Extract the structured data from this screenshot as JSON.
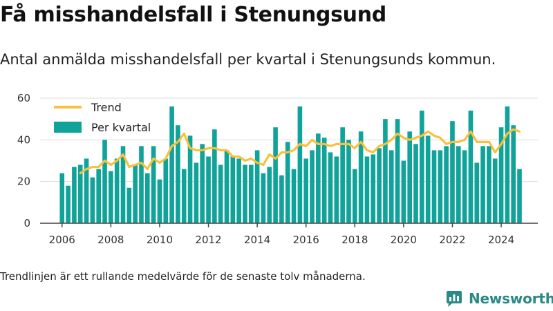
{
  "header": {
    "title": "Få misshandelsfall i Stenungsund",
    "subtitle": "Antal anmälda misshandelsfall per kvartal i Stenungsunds kommun."
  },
  "footnote": "Trendlinjen är ett rullande medelvärde för de senaste tolv månaderna.",
  "brand": {
    "name": "Newsworthy",
    "icon": "bar-chart-logo-icon"
  },
  "colors": {
    "bar": "#0fa39a",
    "trend": "#f9c03b",
    "axis": "#444444",
    "grid": "#dddddd"
  },
  "chart_data": {
    "type": "bar",
    "x_start": 2006.0,
    "x_step": 0.25,
    "values": [
      24,
      18,
      27,
      28,
      31,
      22,
      26,
      40,
      25,
      31,
      37,
      17,
      28,
      37,
      24,
      37,
      21,
      31,
      56,
      47,
      26,
      42,
      29,
      38,
      32,
      45,
      28,
      35,
      32,
      31,
      28,
      28,
      35,
      24,
      27,
      46,
      23,
      39,
      26,
      56,
      31,
      35,
      43,
      41,
      34,
      32,
      46,
      40,
      26,
      44,
      32,
      33,
      36,
      50,
      35,
      50,
      30,
      44,
      38,
      54,
      42,
      35,
      35,
      37,
      49,
      37,
      35,
      54,
      29,
      37,
      37,
      31,
      46,
      56,
      47,
      26
    ],
    "series": [
      {
        "name": "Per kvartal"
      },
      {
        "name": "Trend",
        "x": [
          2006.75,
          2007,
          2007.25,
          2007.5,
          2007.75,
          2008,
          2008.25,
          2008.5,
          2008.75,
          2009,
          2009.25,
          2009.5,
          2009.75,
          2010,
          2010.25,
          2010.5,
          2010.75,
          2011,
          2011.25,
          2011.5,
          2011.75,
          2012,
          2012.25,
          2012.5,
          2012.75,
          2013,
          2013.25,
          2013.5,
          2013.75,
          2014,
          2014.25,
          2014.5,
          2014.75,
          2015,
          2015.25,
          2015.5,
          2015.75,
          2016,
          2016.25,
          2016.5,
          2016.75,
          2017,
          2017.25,
          2017.5,
          2017.75,
          2018,
          2018.25,
          2018.5,
          2018.75,
          2019,
          2019.25,
          2019.5,
          2019.75,
          2020,
          2020.25,
          2020.5,
          2020.75,
          2021,
          2021.25,
          2021.5,
          2021.75,
          2022,
          2022.25,
          2022.5,
          2022.75,
          2023,
          2023.25,
          2023.5,
          2023.75,
          2024,
          2024.25,
          2024.5,
          2024.75
        ],
        "values": [
          24,
          26,
          27,
          27,
          30,
          28,
          30,
          33,
          27,
          28,
          29,
          26,
          31,
          29,
          31,
          37,
          39,
          43,
          36,
          35,
          35,
          36,
          36,
          35,
          35,
          32,
          32,
          30,
          31,
          29,
          28,
          33,
          31,
          34,
          34,
          35,
          38,
          37,
          40,
          38,
          38,
          37,
          38,
          38,
          38,
          36,
          39,
          35,
          34,
          37,
          38,
          40,
          43,
          41,
          40,
          41,
          42,
          44,
          42,
          41,
          38,
          39,
          39,
          40,
          44,
          39,
          39,
          39,
          34,
          38,
          43,
          45,
          44
        ]
      }
    ],
    "legend": [
      "Trend",
      "Per kvartal"
    ],
    "legend_position": "top-left",
    "x_ticks": [
      "2006",
      "2008",
      "2010",
      "2012",
      "2014",
      "2016",
      "2018",
      "2020",
      "2022",
      "2024"
    ],
    "y_ticks": [
      "0",
      "20",
      "40",
      "60"
    ],
    "xlim": [
      2005.1,
      2025.5
    ],
    "ylim": [
      0,
      60
    ],
    "grid": "horizontal"
  }
}
